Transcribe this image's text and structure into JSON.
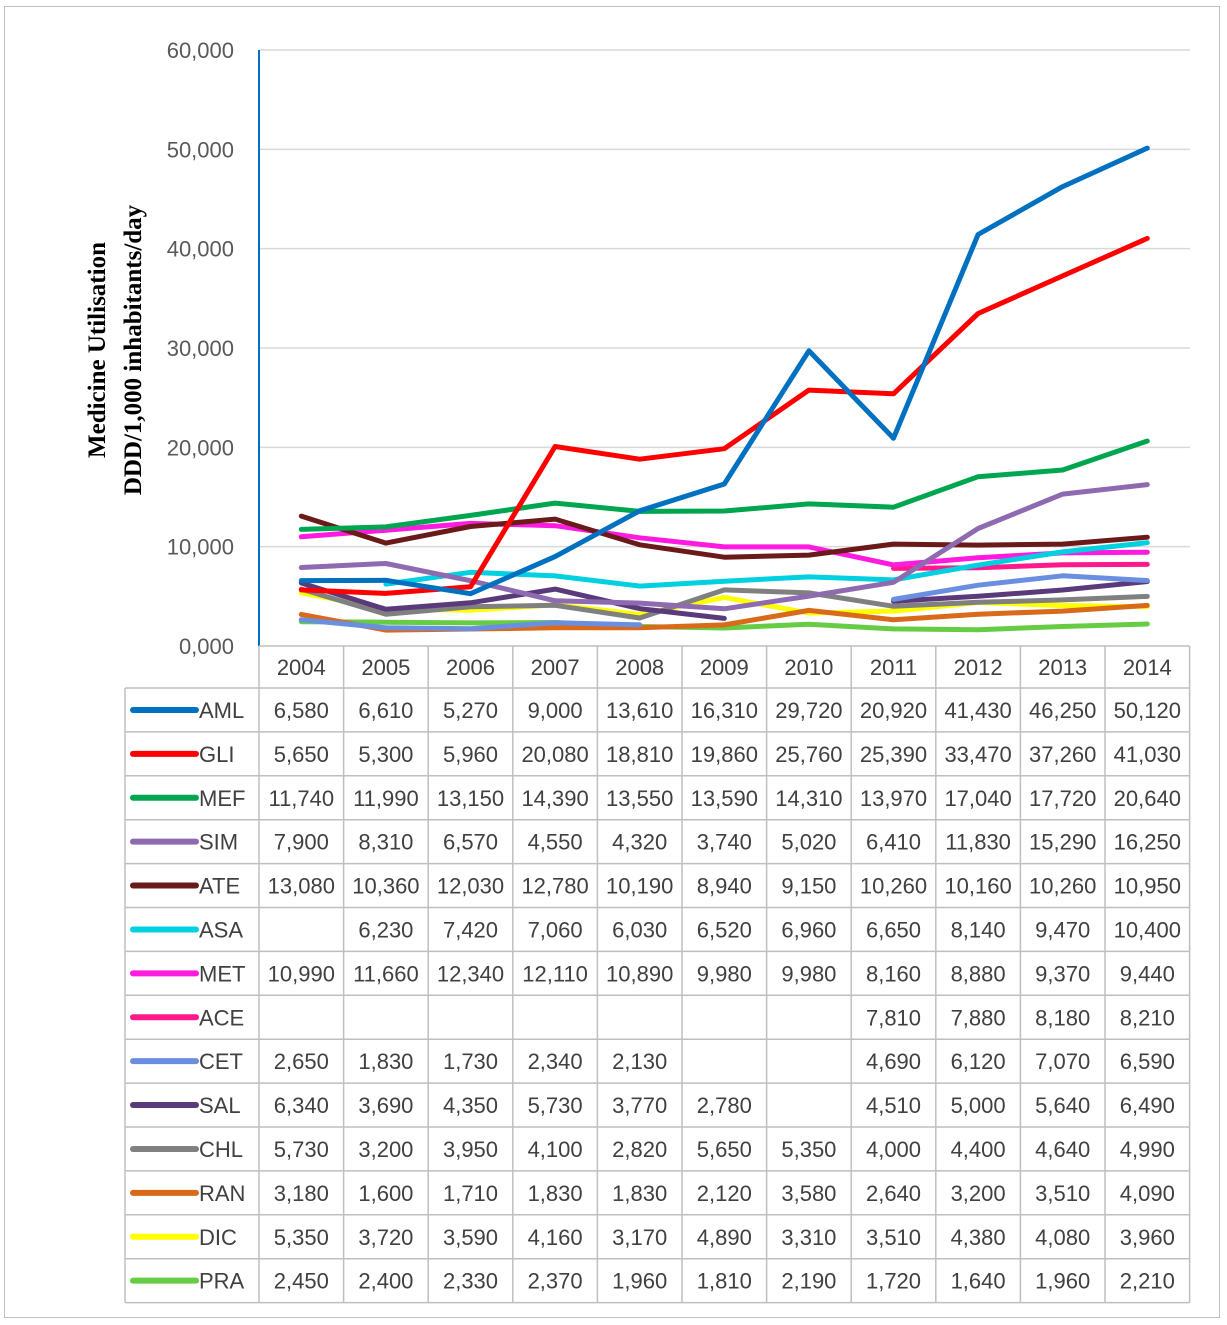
{
  "chart_data": {
    "type": "line",
    "title": "",
    "ylabel_line1": "Medicine Utilisation",
    "ylabel_line2": "DDD/1,000 inhabitants/day",
    "xlabel": "",
    "ylim": [
      0,
      60000
    ],
    "yticks": [
      0,
      10000,
      20000,
      30000,
      40000,
      50000,
      60000
    ],
    "ytick_labels": [
      "0,000",
      "10,000",
      "20,000",
      "30,000",
      "40,000",
      "50,000",
      "60,000"
    ],
    "grid": true,
    "legend": "data-table-below",
    "categories": [
      "2004",
      "2005",
      "2006",
      "2007",
      "2008",
      "2009",
      "2010",
      "2011",
      "2012",
      "2013",
      "2014"
    ],
    "series": [
      {
        "name": "AML",
        "color": "#0070c0",
        "values": [
          6580,
          6610,
          5270,
          9000,
          13610,
          16310,
          29720,
          20920,
          41430,
          46250,
          50120
        ],
        "labels": [
          "6,580",
          "6,610",
          "5,270",
          "9,000",
          "13,610",
          "16,310",
          "29,720",
          "20,920",
          "41,430",
          "46,250",
          "50,120"
        ]
      },
      {
        "name": "GLI",
        "color": "#ff0000",
        "values": [
          5650,
          5300,
          5960,
          20080,
          18810,
          19860,
          25760,
          25390,
          33470,
          37260,
          41030
        ],
        "labels": [
          "5,650",
          "5,300",
          "5,960",
          "20,080",
          "18,810",
          "19,860",
          "25,760",
          "25,390",
          "33,470",
          "37,260",
          "41,030"
        ]
      },
      {
        "name": "MEF",
        "color": "#00a550",
        "values": [
          11740,
          11990,
          13150,
          14390,
          13550,
          13590,
          14310,
          13970,
          17040,
          17720,
          20640
        ],
        "labels": [
          "11,740",
          "11,990",
          "13,150",
          "14,390",
          "13,550",
          "13,590",
          "14,310",
          "13,970",
          "17,040",
          "17,720",
          "20,640"
        ]
      },
      {
        "name": "SIM",
        "color": "#8e6bb0",
        "values": [
          7900,
          8310,
          6570,
          4550,
          4320,
          3740,
          5020,
          6410,
          11830,
          15290,
          16250
        ],
        "labels": [
          "7,900",
          "8,310",
          "6,570",
          "4,550",
          "4,320",
          "3,740",
          "5,020",
          "6,410",
          "11,830",
          "15,290",
          "16,250"
        ]
      },
      {
        "name": "ATE",
        "color": "#6b1a1a",
        "values": [
          13080,
          10360,
          12030,
          12780,
          10190,
          8940,
          9150,
          10260,
          10160,
          10260,
          10950
        ],
        "labels": [
          "13,080",
          "10,360",
          "12,030",
          "12,780",
          "10,190",
          "8,940",
          "9,150",
          "10,260",
          "10,160",
          "10,260",
          "10,950"
        ]
      },
      {
        "name": "ASA",
        "color": "#00d0e0",
        "values": [
          null,
          6230,
          7420,
          7060,
          6030,
          6520,
          6960,
          6650,
          8140,
          9470,
          10400
        ],
        "labels": [
          "",
          "6,230",
          "7,420",
          "7,060",
          "6,030",
          "6,520",
          "6,960",
          "6,650",
          "8,140",
          "9,470",
          "10,400"
        ]
      },
      {
        "name": "MET",
        "color": "#ff1ae0",
        "values": [
          10990,
          11660,
          12340,
          12110,
          10890,
          9980,
          9980,
          8160,
          8880,
          9370,
          9440
        ],
        "labels": [
          "10,990",
          "11,660",
          "12,340",
          "12,110",
          "10,890",
          "9,980",
          "9,980",
          "8,160",
          "8,880",
          "9,370",
          "9,440"
        ]
      },
      {
        "name": "ACE",
        "color": "#ff1a8c",
        "values": [
          null,
          null,
          null,
          null,
          null,
          null,
          null,
          7810,
          7880,
          8180,
          8210
        ],
        "labels": [
          "",
          "",
          "",
          "",
          "",
          "",
          "",
          "7,810",
          "7,880",
          "8,180",
          "8,210"
        ]
      },
      {
        "name": "CET",
        "color": "#6b8fe0",
        "values": [
          2650,
          1830,
          1730,
          2340,
          2130,
          null,
          null,
          4690,
          6120,
          7070,
          6590
        ],
        "labels": [
          "2,650",
          "1,830",
          "1,730",
          "2,340",
          "2,130",
          "",
          "",
          "4,690",
          "6,120",
          "7,070",
          "6,590"
        ]
      },
      {
        "name": "SAL",
        "color": "#5a3a7a",
        "values": [
          6340,
          3690,
          4350,
          5730,
          3770,
          2780,
          null,
          4510,
          5000,
          5640,
          6490
        ],
        "labels": [
          "6,340",
          "3,690",
          "4,350",
          "5,730",
          "3,770",
          "2,780",
          "",
          "4,510",
          "5,000",
          "5,640",
          "6,490"
        ]
      },
      {
        "name": "CHL",
        "color": "#808080",
        "values": [
          5730,
          3200,
          3950,
          4100,
          2820,
          5650,
          5350,
          4000,
          4400,
          4640,
          4990
        ],
        "labels": [
          "5,730",
          "3,200",
          "3,950",
          "4,100",
          "2,820",
          "5,650",
          "5,350",
          "4,000",
          "4,400",
          "4,640",
          "4,990"
        ]
      },
      {
        "name": "RAN",
        "color": "#d96a1a",
        "values": [
          3180,
          1600,
          1710,
          1830,
          1830,
          2120,
          3580,
          2640,
          3200,
          3510,
          4090
        ],
        "labels": [
          "3,180",
          "1,600",
          "1,710",
          "1,830",
          "1,830",
          "2,120",
          "3,580",
          "2,640",
          "3,200",
          "3,510",
          "4,090"
        ]
      },
      {
        "name": "DIC",
        "color": "#ffff00",
        "values": [
          5350,
          3720,
          3590,
          4160,
          3170,
          4890,
          3310,
          3510,
          4380,
          4080,
          3960
        ],
        "labels": [
          "5,350",
          "3,720",
          "3,590",
          "4,160",
          "3,170",
          "4,890",
          "3,310",
          "3,510",
          "4,380",
          "4,080",
          "3,960"
        ]
      },
      {
        "name": "PRA",
        "color": "#66cc44",
        "values": [
          2450,
          2400,
          2330,
          2370,
          1960,
          1810,
          2190,
          1720,
          1640,
          1960,
          2210
        ],
        "labels": [
          "2,450",
          "2,400",
          "2,330",
          "2,370",
          "1,960",
          "1,810",
          "2,190",
          "1,720",
          "1,640",
          "1,960",
          "2,210"
        ]
      }
    ]
  }
}
